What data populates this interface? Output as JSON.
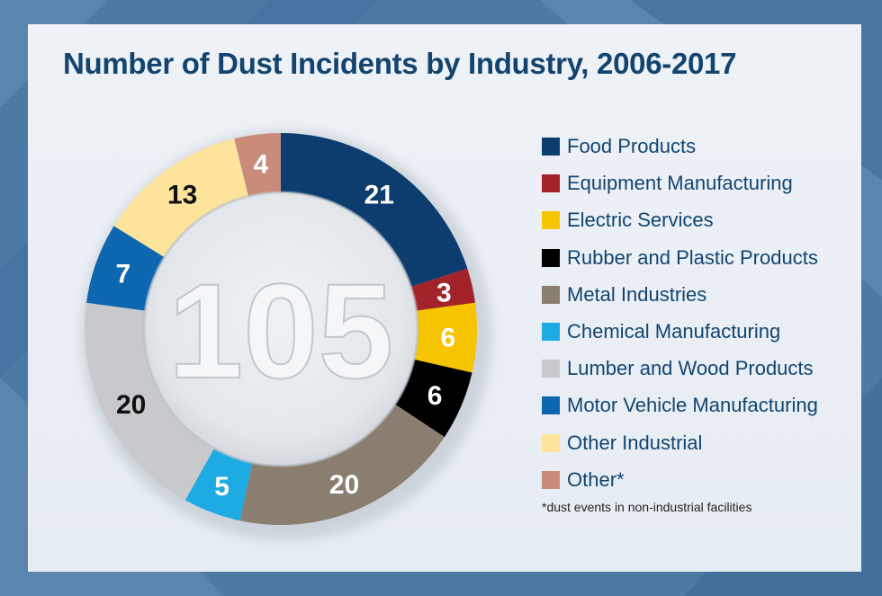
{
  "chart_data": {
    "type": "pie",
    "title": "Number of Dust Incidents by Industry, 2006-2017",
    "total_label": "105",
    "donut": true,
    "legend_position": "right",
    "footnote": "*dust events in non-industrial facilities",
    "series": [
      {
        "name": "Food Products",
        "value": 21,
        "color": "#0c3d6e"
      },
      {
        "name": "Equipment Manufacturing",
        "value": 3,
        "color": "#a3232a"
      },
      {
        "name": "Electric Services",
        "value": 6,
        "color": "#f6c400"
      },
      {
        "name": "Rubber and Plastic Products",
        "value": 6,
        "color": "#000000"
      },
      {
        "name": "Metal Industries",
        "value": 20,
        "color": "#8a7e70"
      },
      {
        "name": "Chemical Manufacturing",
        "value": 5,
        "color": "#1eaae3"
      },
      {
        "name": "Lumber and Wood Products",
        "value": 20,
        "color": "#c8c9cc"
      },
      {
        "name": "Motor Vehicle Manufacturing",
        "value": 7,
        "color": "#0d66b0"
      },
      {
        "name": "Other Industrial",
        "value": 13,
        "color": "#fde39c"
      },
      {
        "name": "Other*",
        "value": 4,
        "color": "#c98c7a"
      }
    ],
    "label_colors": {
      "on_dark": "#ffffff",
      "on_light": "#111111"
    },
    "label_on_light": [
      false,
      false,
      false,
      false,
      false,
      false,
      true,
      false,
      true,
      false
    ]
  }
}
